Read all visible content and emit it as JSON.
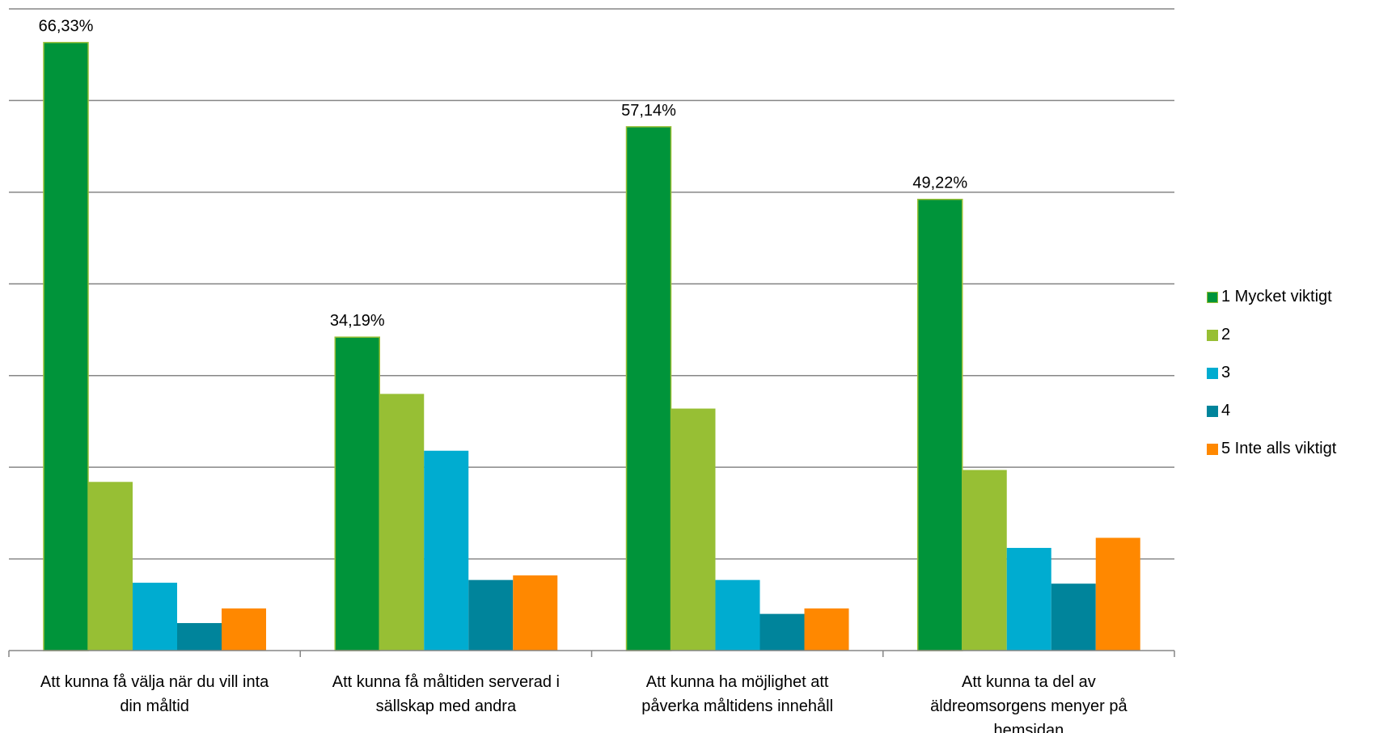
{
  "chart_data": {
    "type": "bar",
    "title": "",
    "xlabel": "",
    "ylabel": "",
    "ylim": [
      0,
      70
    ],
    "grid": true,
    "legend_position": "right",
    "categories": [
      "Att kunna få välja när du vill inta din måltid",
      "Att kunna få måltiden serverad i sällskap med andra",
      "Att kunna ha möjlighet att påverka måltidens innehåll",
      "Att kunna ta del av äldreomsorgens menyer på hemsidan"
    ],
    "category_lines": [
      [
        "Att kunna få välja när du vill inta",
        "din måltid"
      ],
      [
        "Att kunna få måltiden serverad i",
        "sällskap med andra"
      ],
      [
        "Att kunna ha möjlighet att",
        "påverka måltidens innehåll"
      ],
      [
        "Att kunna ta del av",
        "äldreomsorgens menyer på",
        "hemsidan"
      ]
    ],
    "series": [
      {
        "name": "1 Mycket viktigt",
        "color": "#00943A",
        "values": [
          66.33,
          34.19,
          57.14,
          49.22
        ]
      },
      {
        "name": "2",
        "color": "#97BF34",
        "values": [
          18.4,
          28.0,
          26.4,
          19.7
        ]
      },
      {
        "name": "3",
        "color": "#00ACD0",
        "values": [
          7.4,
          21.8,
          7.7,
          11.2
        ]
      },
      {
        "name": "4",
        "color": "#00849B",
        "values": [
          3.0,
          7.7,
          4.0,
          7.3
        ]
      },
      {
        "name": "5 Inte alls viktigt",
        "color": "#FF8800",
        "values": [
          4.6,
          8.2,
          4.6,
          12.3
        ]
      }
    ],
    "data_labels": [
      {
        "category_index": 0,
        "series_index": 0,
        "text": "66,33%"
      },
      {
        "category_index": 1,
        "series_index": 0,
        "text": "34,19%"
      },
      {
        "category_index": 2,
        "series_index": 0,
        "text": "57,14%"
      },
      {
        "category_index": 3,
        "series_index": 0,
        "text": "49,22%"
      }
    ]
  }
}
